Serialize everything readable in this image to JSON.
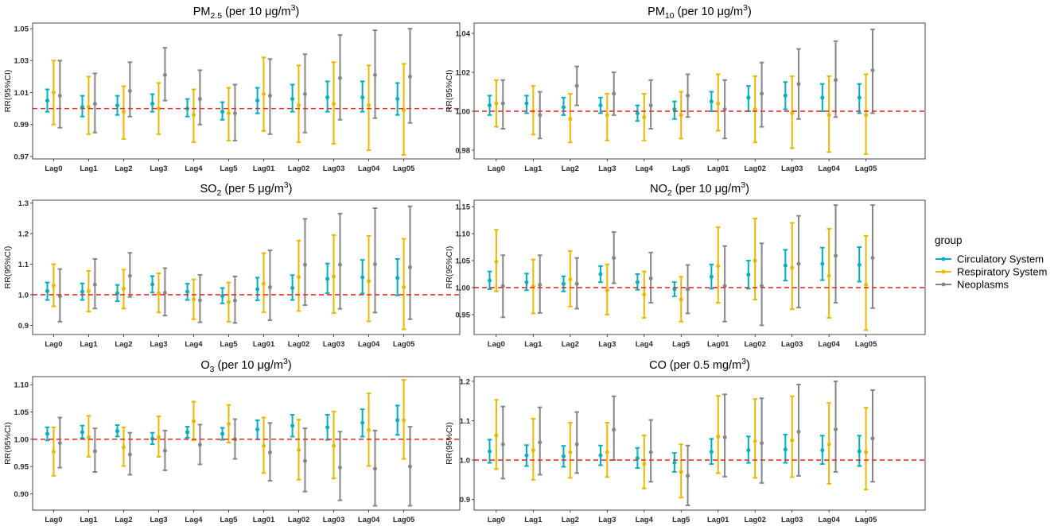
{
  "chart_data": {
    "type": "scatter",
    "categories": [
      "Lag0",
      "Lag1",
      "Lag2",
      "Lag3",
      "Lag4",
      "Lag5",
      "Lag01",
      "Lag02",
      "Lag03",
      "Lag04",
      "Lag05"
    ],
    "legend": {
      "title": "group",
      "position": "right",
      "entries": [
        {
          "name": "Circulatory System",
          "color": "#00AFBB"
        },
        {
          "name": "Respiratory System",
          "color": "#E7B800"
        },
        {
          "name": "Neoplasms",
          "color": "#868686"
        }
      ]
    },
    "reference_line": {
      "y": 1.0,
      "color": "#E8302E"
    },
    "panels": [
      {
        "title": {
          "base": "PM",
          "sub": "2.5",
          "unit": " (per 10 μg/m",
          "sup": "3",
          "close": ")"
        },
        "ylabel": "RR(95%CI)",
        "yticks": [
          "0.97",
          "0.99",
          "1.01",
          "1.03",
          "1.05"
        ],
        "ylim": [
          0.9685,
          1.0535
        ],
        "series": [
          {
            "name": "Circulatory System",
            "estimate": [
              1.005,
              1.001,
              1.002,
              1.003,
              1.0,
              0.998,
              1.005,
              1.006,
              1.007,
              1.007,
              1.006
            ],
            "lower": [
              0.998,
              0.995,
              0.996,
              0.998,
              0.995,
              0.993,
              0.997,
              0.998,
              0.998,
              0.998,
              0.996
            ],
            "upper": [
              1.012,
              1.008,
              1.008,
              1.009,
              1.006,
              1.004,
              1.013,
              1.015,
              1.017,
              1.017,
              1.016
            ]
          },
          {
            "name": "Respiratory System",
            "estimate": [
              1.01,
              1.001,
              0.998,
              1.0,
              0.996,
              0.997,
              1.009,
              1.002,
              1.003,
              1.002,
              0.999
            ],
            "lower": [
              0.99,
              0.984,
              0.981,
              0.984,
              0.979,
              0.98,
              0.986,
              0.979,
              0.978,
              0.974,
              0.971
            ],
            "upper": [
              1.03,
              1.02,
              1.014,
              1.016,
              1.012,
              1.013,
              1.032,
              1.027,
              1.029,
              1.027,
              1.028
            ]
          },
          {
            "name": "Neoplasms",
            "estimate": [
              1.008,
              1.003,
              1.011,
              1.021,
              1.006,
              0.997,
              1.008,
              1.009,
              1.019,
              1.021,
              1.02
            ],
            "lower": [
              0.988,
              0.985,
              0.995,
              1.005,
              0.99,
              0.98,
              0.984,
              0.985,
              0.993,
              0.994,
              0.991
            ],
            "upper": [
              1.03,
              1.022,
              1.029,
              1.038,
              1.024,
              1.015,
              1.031,
              1.034,
              1.046,
              1.049,
              1.05
            ]
          }
        ]
      },
      {
        "title": {
          "base": "PM",
          "sub": "10",
          "unit": " (per 10 μg/m",
          "sup": "3",
          "close": ")"
        },
        "ylabel": "RR(95%CI)",
        "yticks": [
          "0.98",
          "1.00",
          "1.02",
          "1.04"
        ],
        "ylim": [
          0.9755,
          1.0453
        ],
        "series": [
          {
            "name": "Circulatory System",
            "estimate": [
              1.003,
              1.004,
              1.002,
              1.003,
              0.999,
              1.001,
              1.005,
              1.007,
              1.008,
              1.007,
              1.007
            ],
            "lower": [
              0.998,
              0.999,
              0.998,
              0.999,
              0.995,
              0.996,
              1.0,
              1.0,
              1.001,
              1.0,
              0.999
            ],
            "upper": [
              1.008,
              1.008,
              1.007,
              1.007,
              1.003,
              1.005,
              1.01,
              1.013,
              1.015,
              1.014,
              1.014
            ]
          },
          {
            "name": "Respiratory System",
            "estimate": [
              1.004,
              1.0,
              0.996,
              0.998,
              0.997,
              0.998,
              1.004,
              1.001,
              0.999,
              0.998,
              0.998
            ],
            "lower": [
              0.992,
              0.988,
              0.984,
              0.985,
              0.985,
              0.986,
              0.99,
              0.984,
              0.981,
              0.979,
              0.978
            ],
            "upper": [
              1.016,
              1.013,
              1.009,
              1.009,
              1.009,
              1.01,
              1.019,
              1.018,
              1.018,
              1.018,
              1.019
            ]
          },
          {
            "name": "Neoplasms",
            "estimate": [
              1.004,
              0.998,
              1.013,
              1.009,
              1.003,
              1.008,
              1.001,
              1.009,
              1.014,
              1.016,
              1.021
            ],
            "lower": [
              0.991,
              0.986,
              1.003,
              0.998,
              0.991,
              0.997,
              0.986,
              0.992,
              0.996,
              0.997,
              0.999
            ],
            "upper": [
              1.016,
              1.01,
              1.023,
              1.02,
              1.016,
              1.019,
              1.016,
              1.025,
              1.032,
              1.036,
              1.042
            ]
          }
        ]
      },
      {
        "title": {
          "base": "SO",
          "sub": "2",
          "unit": " (per 5 μg/m",
          "sup": "3",
          "close": ")"
        },
        "ylabel": "RR(95%CI)",
        "yticks": [
          "0.9",
          "1.0",
          "1.1",
          "1.2",
          "1.3"
        ],
        "ylim": [
          0.87,
          1.309
        ],
        "series": [
          {
            "name": "Circulatory System",
            "estimate": [
              1.012,
              1.01,
              1.005,
              1.034,
              1.01,
              0.996,
              1.018,
              1.022,
              1.052,
              1.057,
              1.055
            ],
            "lower": [
              0.983,
              0.983,
              0.979,
              1.007,
              0.983,
              0.972,
              0.982,
              0.983,
              1.005,
              1.004,
              0.998
            ],
            "upper": [
              1.04,
              1.037,
              1.032,
              1.061,
              1.036,
              1.022,
              1.056,
              1.064,
              1.102,
              1.114,
              1.117
            ]
          },
          {
            "name": "Respiratory System",
            "estimate": [
              1.03,
              1.012,
              1.02,
              1.005,
              0.985,
              0.976,
              1.036,
              1.058,
              1.06,
              1.045,
              1.025
            ],
            "lower": [
              0.962,
              0.945,
              0.955,
              0.942,
              0.92,
              0.912,
              0.943,
              0.947,
              0.94,
              0.913,
              0.887
            ],
            "upper": [
              1.1,
              1.078,
              1.082,
              1.07,
              1.05,
              1.04,
              1.136,
              1.177,
              1.195,
              1.192,
              1.183
            ]
          },
          {
            "name": "Neoplasms",
            "estimate": [
              0.995,
              1.033,
              1.062,
              1.006,
              0.982,
              0.981,
              1.025,
              1.098,
              1.098,
              1.1,
              1.09
            ],
            "lower": [
              0.912,
              0.955,
              0.993,
              0.932,
              0.91,
              0.908,
              0.917,
              0.966,
              0.954,
              0.942,
              0.92
            ],
            "upper": [
              1.084,
              1.117,
              1.137,
              1.087,
              1.065,
              1.06,
              1.145,
              1.248,
              1.265,
              1.283,
              1.289
            ]
          }
        ]
      },
      {
        "title": {
          "base": "NO",
          "sub": "2",
          "unit": " (per 10 μg/m",
          "sup": "3",
          "close": ")"
        },
        "ylabel": "RR(95%CI)",
        "yticks": [
          "0.95",
          "1.00",
          "1.05",
          "1.10",
          "1.15"
        ],
        "ylim": [
          0.913,
          1.162
        ],
        "series": [
          {
            "name": "Circulatory System",
            "estimate": [
              1.013,
              1.01,
              1.007,
              1.025,
              1.01,
              0.997,
              1.02,
              1.024,
              1.041,
              1.044,
              1.042
            ],
            "lower": [
              0.997,
              0.995,
              0.993,
              1.01,
              0.996,
              0.984,
              0.998,
              0.998,
              1.013,
              1.014,
              1.011
            ],
            "upper": [
              1.03,
              1.026,
              1.021,
              1.04,
              1.025,
              1.01,
              1.043,
              1.05,
              1.07,
              1.074,
              1.075
            ]
          },
          {
            "name": "Respiratory System",
            "estimate": [
              1.048,
              1.002,
              1.015,
              0.995,
              0.987,
              0.978,
              1.04,
              1.05,
              1.037,
              1.022,
              1.005
            ],
            "lower": [
              0.993,
              0.952,
              0.965,
              0.95,
              0.944,
              0.937,
              0.972,
              0.978,
              0.96,
              0.944,
              0.921
            ],
            "upper": [
              1.107,
              1.052,
              1.068,
              1.043,
              1.03,
              1.02,
              1.112,
              1.128,
              1.12,
              1.109,
              1.096
            ]
          },
          {
            "name": "Neoplasms",
            "estimate": [
              1.003,
              1.005,
              1.007,
              1.055,
              1.017,
              0.997,
              1.003,
              1.003,
              1.044,
              1.059,
              1.055
            ],
            "lower": [
              0.945,
              0.953,
              0.961,
              1.008,
              0.972,
              0.952,
              0.937,
              0.93,
              0.963,
              0.972,
              0.962
            ],
            "upper": [
              1.06,
              1.06,
              1.055,
              1.103,
              1.065,
              1.042,
              1.077,
              1.082,
              1.133,
              1.153,
              1.153
            ]
          }
        ]
      },
      {
        "title": {
          "base": "O",
          "sub": "3",
          "unit": " (per 10 μg/m",
          "sup": "3",
          "close": ")"
        },
        "ylabel": "RR(95%CI)",
        "yticks": [
          "0.90",
          "0.95",
          "1.00",
          "1.05",
          "1.10"
        ],
        "ylim": [
          0.87,
          1.115
        ],
        "series": [
          {
            "name": "Circulatory System",
            "estimate": [
              1.01,
              1.013,
              1.015,
              1.001,
              1.013,
              1.01,
              1.018,
              1.025,
              1.022,
              1.03,
              1.035
            ],
            "lower": [
              0.998,
              1.002,
              1.005,
              0.991,
              1.003,
              0.999,
              1.0,
              1.005,
              0.999,
              1.005,
              1.008
            ],
            "upper": [
              1.022,
              1.025,
              1.026,
              1.012,
              1.023,
              1.021,
              1.035,
              1.045,
              1.045,
              1.055,
              1.062
            ]
          },
          {
            "name": "Respiratory System",
            "estimate": [
              0.977,
              1.004,
              0.985,
              1.004,
              1.033,
              1.028,
              0.988,
              0.98,
              0.988,
              1.017,
              1.035
            ],
            "lower": [
              0.933,
              0.968,
              0.951,
              0.968,
              0.998,
              0.994,
              0.938,
              0.926,
              0.928,
              0.951,
              0.964
            ],
            "upper": [
              1.022,
              1.043,
              1.022,
              1.042,
              1.069,
              1.063,
              1.04,
              1.036,
              1.051,
              1.084,
              1.109
            ]
          },
          {
            "name": "Neoplasms",
            "estimate": [
              0.993,
              0.978,
              0.972,
              0.979,
              0.99,
              1.0,
              0.976,
              0.96,
              0.948,
              0.946,
              0.95
            ],
            "lower": [
              0.948,
              0.94,
              0.935,
              0.943,
              0.954,
              0.964,
              0.924,
              0.904,
              0.888,
              0.878,
              0.878
            ],
            "upper": [
              1.04,
              1.02,
              1.012,
              1.016,
              1.027,
              1.037,
              1.03,
              1.02,
              1.014,
              1.016,
              1.023
            ]
          }
        ]
      },
      {
        "title": {
          "base": "CO",
          "unit": " (per 0.5 mg/m",
          "sup": "3",
          "close": ")"
        },
        "ylabel": "RR(95%CI)",
        "yticks": [
          "0.9",
          "1.0",
          "1.1",
          "1.2"
        ],
        "ylim": [
          0.873,
          1.212
        ],
        "series": [
          {
            "name": "Circulatory System",
            "estimate": [
              1.022,
              1.012,
              1.01,
              1.012,
              1.005,
              0.993,
              1.021,
              1.025,
              1.027,
              1.025,
              1.022
            ],
            "lower": [
              0.993,
              0.985,
              0.983,
              0.987,
              0.98,
              0.97,
              0.99,
              0.993,
              0.993,
              0.99,
              0.985
            ],
            "upper": [
              1.052,
              1.038,
              1.036,
              1.037,
              1.031,
              1.018,
              1.054,
              1.06,
              1.065,
              1.062,
              1.062
            ]
          },
          {
            "name": "Respiratory System",
            "estimate": [
              1.062,
              1.025,
              1.02,
              1.02,
              0.99,
              0.97,
              1.06,
              1.048,
              1.05,
              1.04,
              1.02
            ],
            "lower": [
              0.977,
              0.95,
              0.955,
              0.957,
              0.928,
              0.905,
              0.967,
              0.955,
              0.957,
              0.94,
              0.925
            ],
            "upper": [
              1.153,
              1.105,
              1.095,
              1.095,
              1.063,
              1.04,
              1.163,
              1.155,
              1.162,
              1.145,
              1.133
            ]
          },
          {
            "name": "Neoplasms",
            "estimate": [
              1.04,
              1.045,
              1.04,
              1.077,
              1.02,
              0.96,
              1.058,
              1.043,
              1.072,
              1.078,
              1.055
            ],
            "lower": [
              0.953,
              0.963,
              0.967,
              1.0,
              0.945,
              0.885,
              0.958,
              0.942,
              0.96,
              0.97,
              0.945
            ],
            "upper": [
              1.136,
              1.134,
              1.122,
              1.162,
              1.102,
              1.037,
              1.167,
              1.157,
              1.192,
              1.2,
              1.178
            ]
          }
        ]
      }
    ]
  }
}
